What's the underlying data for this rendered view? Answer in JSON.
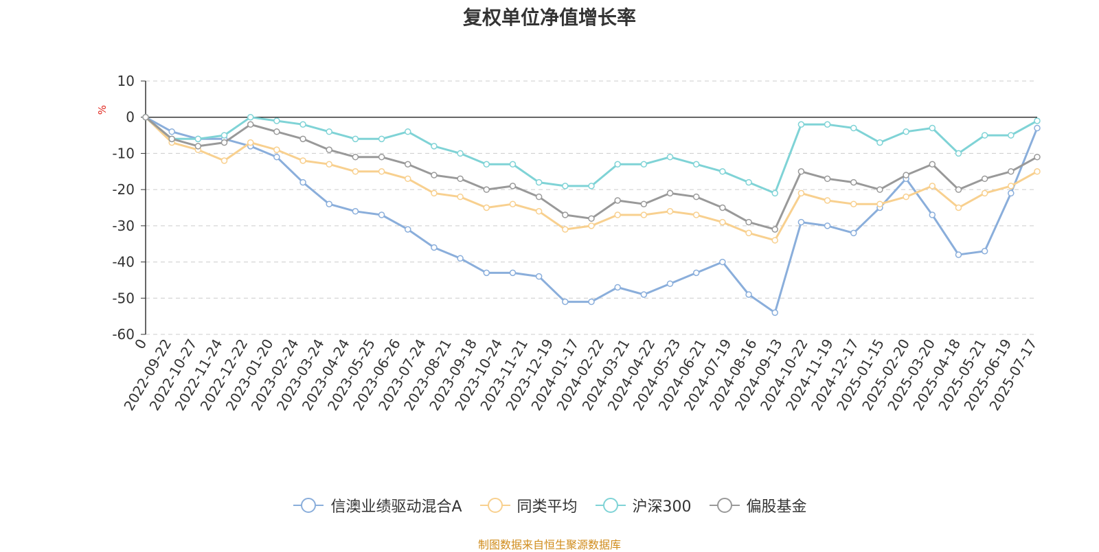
{
  "title": "复权单位净值增长率",
  "source": "制图数据来自恒生聚源数据库",
  "chart_data": {
    "type": "line",
    "title": "复权单位净值增长率",
    "ylabel": "%",
    "ylim": [
      -60,
      10
    ],
    "yticks": [
      10,
      0,
      -10,
      -20,
      -30,
      -40,
      -50,
      -60
    ],
    "grid": true,
    "legend_position": "bottom",
    "x": [
      "2022-09-22",
      "2022-10-27",
      "2022-11-24",
      "2022-12-22",
      "2023-01-20",
      "2023-02-24",
      "2023-03-24",
      "2023-04-24",
      "2023-05-25",
      "2023-06-26",
      "2023-07-24",
      "2023-08-21",
      "2023-09-18",
      "2023-10-24",
      "2023-11-21",
      "2023-12-19",
      "2024-01-17",
      "2024-02-22",
      "2024-03-21",
      "2024-04-22",
      "2024-05-23",
      "2024-06-21",
      "2024-07-19",
      "2024-08-16",
      "2024-09-13",
      "2024-10-22",
      "2024-11-19",
      "2024-12-17",
      "2025-01-15",
      "2025-02-20",
      "2025-03-20",
      "2025-04-18",
      "2025-05-21",
      "2025-06-19",
      "2025-07-17"
    ],
    "x_first_label": "0",
    "series": [
      {
        "name": "信澳业绩驱动混合A",
        "color": "#8aaedb",
        "values": [
          0,
          -4,
          -6,
          -6,
          -8,
          -11,
          -18,
          -24,
          -26,
          -27,
          -31,
          -36,
          -39,
          -43,
          -43,
          -44,
          -51,
          -51,
          -47,
          -49,
          -46,
          -43,
          -40,
          -49,
          -54,
          -29,
          -30,
          -32,
          -25,
          -17,
          -27,
          -38,
          -37,
          -21,
          -3
        ]
      },
      {
        "name": "同类平均",
        "color": "#f8d08f",
        "values": [
          0,
          -7,
          -9,
          -12,
          -7,
          -9,
          -12,
          -13,
          -15,
          -15,
          -17,
          -21,
          -22,
          -25,
          -24,
          -26,
          -31,
          -30,
          -27,
          -27,
          -26,
          -27,
          -29,
          -32,
          -34,
          -21,
          -23,
          -24,
          -24,
          -22,
          -19,
          -25,
          -21,
          -19,
          -15
        ]
      },
      {
        "name": "沪深300",
        "color": "#7fd3d6",
        "values": [
          0,
          -6,
          -6,
          -5,
          0,
          -1,
          -2,
          -4,
          -6,
          -6,
          -4,
          -8,
          -10,
          -13,
          -13,
          -18,
          -19,
          -19,
          -13,
          -13,
          -11,
          -13,
          -15,
          -18,
          -21,
          -2,
          -2,
          -3,
          -7,
          -4,
          -3,
          -10,
          -5,
          -5,
          -1
        ]
      },
      {
        "name": "偏股基金",
        "color": "#999999",
        "values": [
          0,
          -6,
          -8,
          -7,
          -2,
          -4,
          -6,
          -9,
          -11,
          -11,
          -13,
          -16,
          -17,
          -20,
          -19,
          -22,
          -27,
          -28,
          -23,
          -24,
          -21,
          -22,
          -25,
          -29,
          -31,
          -15,
          -17,
          -18,
          -20,
          -16,
          -13,
          -20,
          -17,
          -15,
          -11
        ]
      }
    ]
  }
}
